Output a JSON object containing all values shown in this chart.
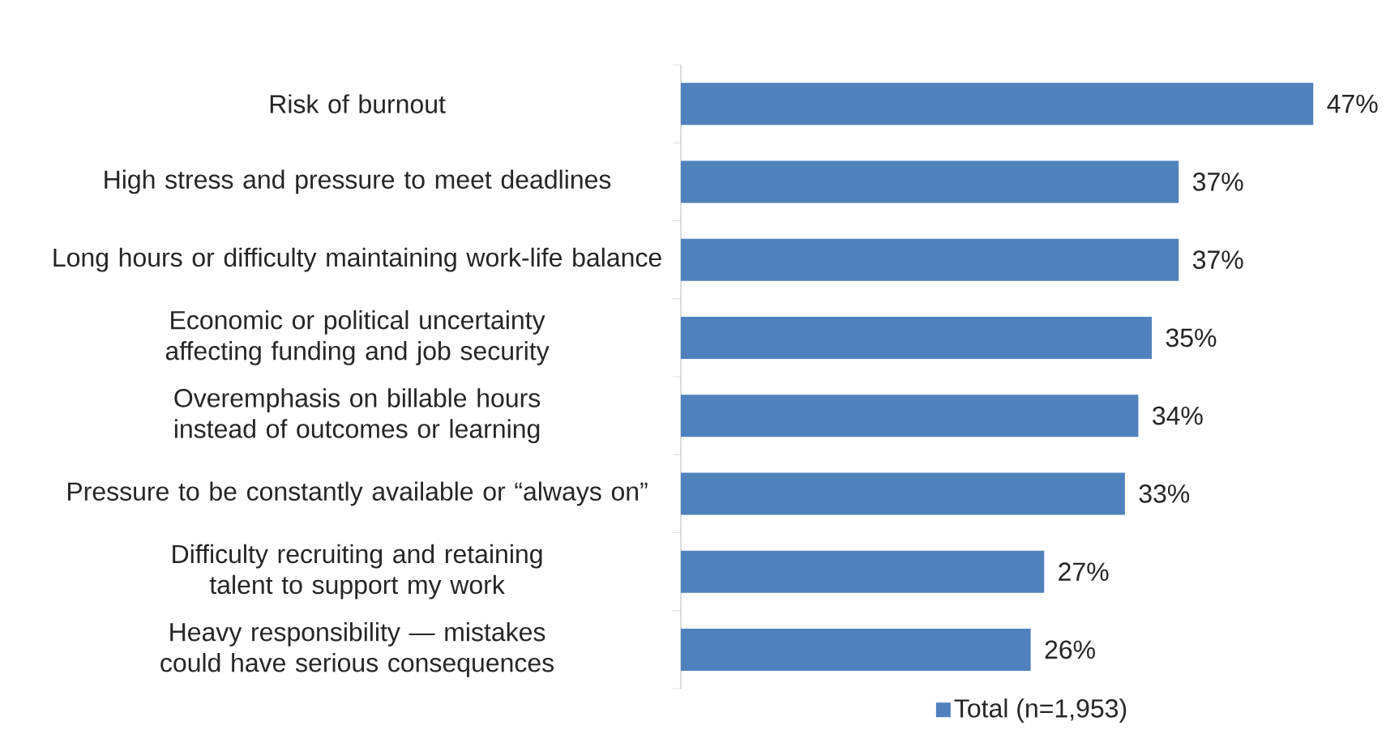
{
  "chart_data": {
    "type": "bar",
    "orientation": "horizontal",
    "categories": [
      "Risk of burnout",
      "High stress and pressure to meet deadlines",
      "Long hours or difficulty maintaining work-life balance",
      "Economic or political uncertainty affecting funding and job security",
      "Overemphasis on billable hours instead of outcomes or learning",
      "Pressure to be constantly available or “always on”",
      "Difficulty recruiting and retaining talent to support my work",
      "Heavy responsibility — mistakes could have serious consequences"
    ],
    "series": [
      {
        "name": "Total (n=1,953)",
        "color": "#4f81bd",
        "values": [
          47,
          37,
          37,
          35,
          34,
          33,
          27,
          26
        ],
        "value_labels": [
          "47%",
          "37%",
          "37%",
          "35%",
          "34%",
          "33%",
          "27%",
          "26%"
        ]
      }
    ],
    "legend": "bottom"
  }
}
